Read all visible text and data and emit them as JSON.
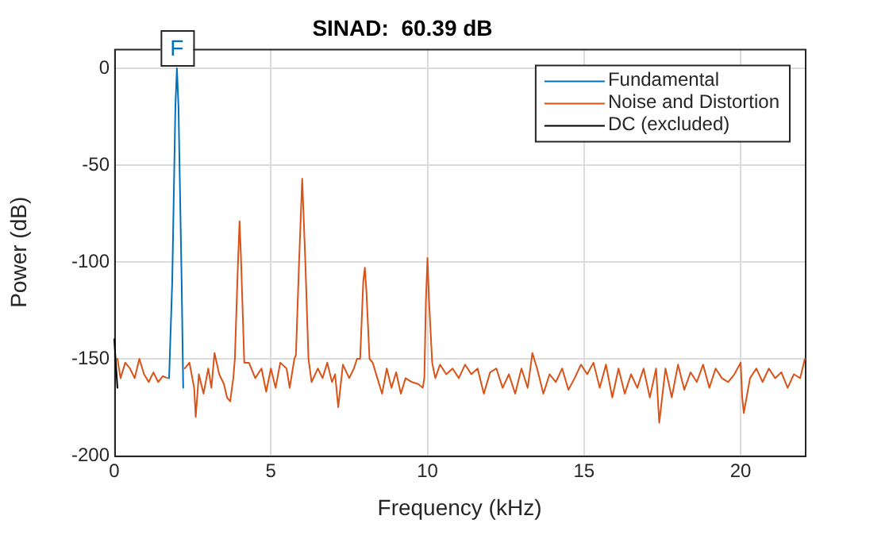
{
  "chart_data": {
    "type": "line",
    "title": "SINAD:  60.39 dB",
    "xlabel": "Frequency (kHz)",
    "ylabel": "Power (dB)",
    "xlim": [
      0,
      22.05
    ],
    "xticks": [
      0,
      5,
      10,
      15,
      20
    ],
    "ylim": [
      -200,
      10
    ],
    "yticks": [
      -200,
      -150,
      -100,
      -50,
      0
    ],
    "grid": true,
    "legend": "top right",
    "line_style": "solid",
    "marker": "none",
    "annotations": [
      {
        "text": "F",
        "x": 2,
        "y": 0
      }
    ],
    "series": [
      {
        "name": "Fundamental",
        "color": "#0072bd",
        "x": [
          1.75,
          1.85,
          1.95,
          2.0,
          2.05,
          2.15,
          2.2
        ],
        "values": [
          -160,
          -110,
          -20,
          0,
          -20,
          -110,
          -165
        ]
      },
      {
        "name": "Noise and Distortion",
        "color": "#d95319",
        "x": [
          0.1,
          0.2,
          0.35,
          0.5,
          0.65,
          0.8,
          0.95,
          1.1,
          1.25,
          1.4,
          1.55,
          1.7,
          1.75,
          2.2,
          2.25,
          2.4,
          2.55,
          2.6,
          2.7,
          2.85,
          3.0,
          3.1,
          3.2,
          3.35,
          3.5,
          3.6,
          3.7,
          3.8,
          3.85,
          3.95,
          4.0,
          4.05,
          4.15,
          4.3,
          4.5,
          4.7,
          4.85,
          5.0,
          5.15,
          5.3,
          5.5,
          5.6,
          5.75,
          5.8,
          5.9,
          6.0,
          6.1,
          6.2,
          6.3,
          6.5,
          6.65,
          6.8,
          6.95,
          7.05,
          7.15,
          7.3,
          7.5,
          7.65,
          7.75,
          7.85,
          7.95,
          8.0,
          8.05,
          8.15,
          8.25,
          8.4,
          8.55,
          8.7,
          8.85,
          9.0,
          9.15,
          9.3,
          9.5,
          9.7,
          9.85,
          9.9,
          9.95,
          10.0,
          10.05,
          10.15,
          10.25,
          10.4,
          10.6,
          10.8,
          11.0,
          11.2,
          11.4,
          11.6,
          11.8,
          12.0,
          12.2,
          12.4,
          12.6,
          12.8,
          13.0,
          13.2,
          13.35,
          13.5,
          13.7,
          13.9,
          14.1,
          14.3,
          14.5,
          14.7,
          14.9,
          15.1,
          15.3,
          15.5,
          15.7,
          15.9,
          16.1,
          16.3,
          16.5,
          16.7,
          16.9,
          17.1,
          17.3,
          17.4,
          17.6,
          17.8,
          18.0,
          18.2,
          18.4,
          18.6,
          18.8,
          19.0,
          19.2,
          19.4,
          19.6,
          19.8,
          20.0,
          20.05,
          20.1,
          20.3,
          20.5,
          20.7,
          20.9,
          21.1,
          21.3,
          21.5,
          21.7,
          21.9,
          22.05
        ],
        "values": [
          -150,
          -160,
          -152,
          -155,
          -160,
          -150,
          -158,
          -162,
          -157,
          -162,
          -159,
          -160,
          null,
          null,
          -155,
          -152,
          -165,
          -180,
          -158,
          -168,
          -155,
          -165,
          -147,
          -158,
          -163,
          -170,
          -172,
          -160,
          -150,
          -100,
          -79,
          -100,
          -152,
          -152,
          -160,
          -155,
          -167,
          -155,
          -165,
          -152,
          -155,
          -165,
          -150,
          -148,
          -100,
          -57,
          -100,
          -150,
          -162,
          -155,
          -160,
          -152,
          -162,
          -158,
          -175,
          -153,
          -160,
          -155,
          -150,
          -150,
          -110,
          -103,
          -115,
          -150,
          -152,
          -160,
          -168,
          -155,
          -165,
          -157,
          -168,
          -160,
          -162,
          -163,
          -165,
          -160,
          -120,
          -98,
          -120,
          -152,
          -160,
          -153,
          -158,
          -155,
          -160,
          -153,
          -158,
          -155,
          -168,
          -157,
          -155,
          -165,
          -158,
          -168,
          -155,
          -165,
          -147,
          -155,
          -168,
          -158,
          -162,
          -155,
          -166,
          -160,
          -153,
          -158,
          -152,
          -165,
          -153,
          -170,
          -155,
          -168,
          -158,
          -165,
          -155,
          -170,
          -155,
          -183,
          -155,
          -170,
          -153,
          -166,
          -157,
          -162,
          -153,
          -165,
          -155,
          -160,
          -162,
          -158,
          -152,
          -170,
          -178,
          -160,
          -155,
          -162,
          -155,
          -160,
          -157,
          -165,
          -158,
          -160,
          -150
        ]
      },
      {
        "name": "DC (excluded)",
        "color": "#000000",
        "x": [
          0,
          0.1
        ],
        "values": [
          -140,
          -165
        ]
      }
    ]
  }
}
